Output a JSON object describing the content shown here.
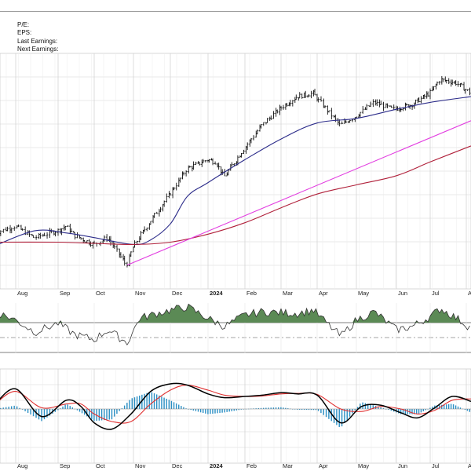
{
  "info": {
    "pe_label": "P/E:",
    "eps_label": "EPS:",
    "last_earnings_label": "Last Earnings:",
    "next_earnings_label": "Next Earnings:"
  },
  "colors": {
    "price": "#111111",
    "ma_short": "#2c2c8a",
    "ma_long": "#b0203a",
    "trendline": "#e23ce0",
    "rsi_line": "#333333",
    "rsi_fill_up": "#5b8a55",
    "macd_line": "#000000",
    "macd_signal": "#e03030",
    "histogram": "#2a8fc4",
    "grid": "#d4d4d4"
  },
  "chart_data": [
    {
      "type": "line",
      "panel": "price",
      "title": "",
      "x_tick_labels": [
        "Aug",
        "Sep",
        "Oct",
        "Nov",
        "Dec",
        "2024",
        "Feb",
        "Mar",
        "Apr",
        "May",
        "Jun",
        "Jul",
        "Aug"
      ],
      "y_tick_labels": [],
      "grid": true,
      "series": [
        {
          "role": "price-ohlc-bars",
          "x": [
            "2023-07-17",
            "2023-08-01",
            "2023-08-15",
            "2023-09-01",
            "2023-09-08",
            "2023-09-15",
            "2023-10-01",
            "2023-10-12",
            "2023-10-27",
            "2023-11-01",
            "2023-11-06",
            "2023-11-15",
            "2023-12-01",
            "2023-12-15",
            "2024-01-01",
            "2024-01-08",
            "2024-01-15",
            "2024-02-01",
            "2024-02-15",
            "2024-03-01",
            "2024-03-15",
            "2024-03-29",
            "2024-04-19",
            "2024-05-01",
            "2024-05-15",
            "2024-05-30",
            "2024-06-15",
            "2024-07-01",
            "2024-07-10",
            "2024-07-24",
            "2024-08-05"
          ],
          "values": [
            46,
            52,
            42,
            48,
            52,
            44,
            36,
            42,
            18,
            33,
            42,
            56,
            80,
            102,
            110,
            108,
            95,
            120,
            140,
            155,
            165,
            168,
            140,
            148,
            160,
            154,
            158,
            168,
            180,
            177,
            168
          ]
        },
        {
          "role": "moving-average-short",
          "x": [
            "2023-07-17",
            "2023-08-15",
            "2023-09-08",
            "2023-10-01",
            "2023-11-01",
            "2023-11-15",
            "2023-12-01",
            "2023-12-15",
            "2024-01-01",
            "2024-02-01",
            "2024-03-01",
            "2024-04-01",
            "2024-05-01",
            "2024-06-01",
            "2024-07-01",
            "2024-08-05"
          ],
          "values": [
            35,
            48,
            46,
            42,
            36,
            40,
            54,
            78,
            90,
            110,
            128,
            142,
            146,
            154,
            160,
            165
          ]
        },
        {
          "role": "moving-average-long",
          "x": [
            "2023-07-17",
            "2023-09-01",
            "2023-10-01",
            "2023-11-01",
            "2023-12-01",
            "2024-01-01",
            "2024-02-01",
            "2024-03-01",
            "2024-04-01",
            "2024-05-01",
            "2024-06-01",
            "2024-07-01",
            "2024-08-05"
          ],
          "values": [
            38,
            38,
            37,
            36,
            38,
            45,
            55,
            68,
            80,
            88,
            96,
            108,
            122
          ]
        },
        {
          "role": "trendline",
          "x": [
            "2023-10-27",
            "2024-08-05"
          ],
          "values": [
            18,
            144
          ]
        }
      ]
    },
    {
      "type": "line",
      "panel": "rsi",
      "title": "",
      "ylim": [
        0,
        100
      ],
      "grid": true,
      "series": [
        {
          "role": "rsi",
          "x": [
            "2023-07-17",
            "2023-08-01",
            "2023-08-15",
            "2023-09-01",
            "2023-09-15",
            "2023-10-01",
            "2023-10-12",
            "2023-10-27",
            "2023-11-06",
            "2023-11-20",
            "2023-12-01",
            "2023-12-15",
            "2024-01-01",
            "2024-01-15",
            "2024-02-01",
            "2024-02-15",
            "2024-03-01",
            "2024-03-15",
            "2024-03-29",
            "2024-04-19",
            "2024-05-01",
            "2024-05-15",
            "2024-06-01",
            "2024-06-15",
            "2024-07-01",
            "2024-07-10",
            "2024-07-24",
            "2024-08-05"
          ],
          "values": [
            70,
            60,
            45,
            56,
            42,
            36,
            48,
            32,
            62,
            68,
            72,
            76,
            62,
            52,
            66,
            70,
            69,
            68,
            72,
            40,
            60,
            70,
            48,
            52,
            64,
            74,
            62,
            50
          ]
        }
      ]
    },
    {
      "type": "line",
      "panel": "macd",
      "title": "",
      "x_tick_labels": [
        "Aug",
        "Sep",
        "Oct",
        "Nov",
        "Dec",
        "2024",
        "Feb",
        "Mar",
        "Apr",
        "May",
        "Jun",
        "Jul",
        "Aug"
      ],
      "grid": true,
      "series": [
        {
          "role": "macd",
          "x": [
            "2023-07-17",
            "2023-08-01",
            "2023-08-20",
            "2023-09-08",
            "2023-09-20",
            "2023-10-01",
            "2023-10-15",
            "2023-10-30",
            "2023-11-15",
            "2023-12-01",
            "2023-12-15",
            "2024-01-01",
            "2024-01-15",
            "2024-02-01",
            "2024-02-15",
            "2024-03-01",
            "2024-03-15",
            "2024-04-01",
            "2024-04-19",
            "2024-05-05",
            "2024-05-20",
            "2024-06-05",
            "2024-06-20",
            "2024-07-05",
            "2024-07-20",
            "2024-08-05"
          ],
          "values": [
            0.2,
            0.8,
            -0.3,
            0.35,
            0.1,
            -0.55,
            -0.8,
            -0.2,
            0.7,
            1.0,
            0.95,
            0.6,
            0.45,
            0.5,
            0.55,
            0.65,
            0.6,
            0.55,
            -0.55,
            0.1,
            0.15,
            -0.15,
            -0.35,
            0.05,
            0.5,
            0.3
          ]
        },
        {
          "role": "signal",
          "x": [
            "2023-07-17",
            "2023-08-01",
            "2023-08-20",
            "2023-09-08",
            "2023-09-20",
            "2023-10-01",
            "2023-10-15",
            "2023-10-30",
            "2023-11-15",
            "2023-12-01",
            "2023-12-15",
            "2024-01-01",
            "2024-01-15",
            "2024-02-01",
            "2024-02-15",
            "2024-03-01",
            "2024-03-15",
            "2024-04-01",
            "2024-04-19",
            "2024-05-05",
            "2024-05-20",
            "2024-06-05",
            "2024-06-20",
            "2024-07-05",
            "2024-07-20",
            "2024-08-05"
          ],
          "values": [
            0.2,
            0.7,
            0.05,
            0.2,
            0.2,
            -0.2,
            -0.5,
            -0.5,
            0.2,
            0.75,
            0.95,
            0.75,
            0.55,
            0.5,
            0.52,
            0.6,
            0.62,
            0.58,
            0.0,
            -0.1,
            0.1,
            0.0,
            -0.2,
            -0.05,
            0.35,
            0.4
          ]
        }
      ]
    }
  ]
}
